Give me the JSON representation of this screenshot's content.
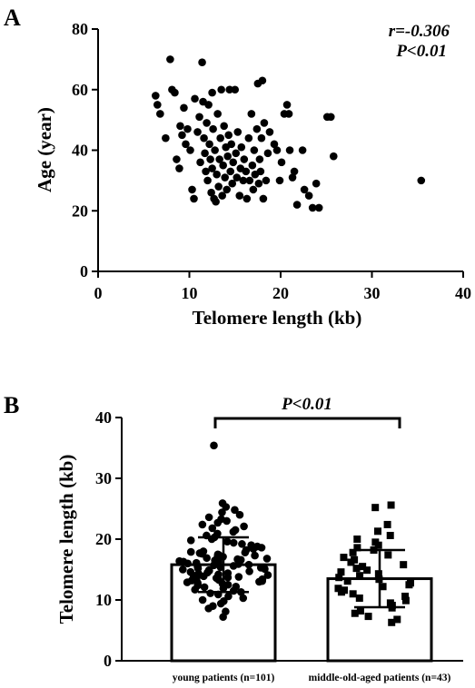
{
  "chart_data": [
    {
      "panel": "A",
      "type": "scatter",
      "xlabel": "Telomere length (kb)",
      "ylabel": "Age (year)",
      "xlim": [
        0,
        40
      ],
      "ylim": [
        0,
        80
      ],
      "xticks": [
        "0",
        "10",
        "20",
        "30",
        "40"
      ],
      "yticks": [
        "0",
        "20",
        "40",
        "60",
        "80"
      ],
      "annotations": [
        "r=-0.306",
        "P<0.01"
      ],
      "grid": false,
      "points": [
        {
          "x": 6.3,
          "y": 58
        },
        {
          "x": 6.5,
          "y": 55
        },
        {
          "x": 6.8,
          "y": 52
        },
        {
          "x": 7.4,
          "y": 44
        },
        {
          "x": 7.9,
          "y": 70
        },
        {
          "x": 8.1,
          "y": 60
        },
        {
          "x": 8.4,
          "y": 59
        },
        {
          "x": 8.6,
          "y": 37
        },
        {
          "x": 8.9,
          "y": 34
        },
        {
          "x": 9.0,
          "y": 48
        },
        {
          "x": 9.2,
          "y": 45
        },
        {
          "x": 9.4,
          "y": 54
        },
        {
          "x": 9.6,
          "y": 42
        },
        {
          "x": 9.8,
          "y": 47
        },
        {
          "x": 10.1,
          "y": 40
        },
        {
          "x": 10.3,
          "y": 27
        },
        {
          "x": 10.5,
          "y": 24
        },
        {
          "x": 10.6,
          "y": 57
        },
        {
          "x": 10.9,
          "y": 46
        },
        {
          "x": 11.1,
          "y": 51
        },
        {
          "x": 11.2,
          "y": 36
        },
        {
          "x": 11.4,
          "y": 69
        },
        {
          "x": 11.5,
          "y": 56
        },
        {
          "x": 11.6,
          "y": 44
        },
        {
          "x": 11.7,
          "y": 39
        },
        {
          "x": 11.8,
          "y": 33
        },
        {
          "x": 11.9,
          "y": 49
        },
        {
          "x": 12.0,
          "y": 30
        },
        {
          "x": 12.1,
          "y": 55
        },
        {
          "x": 12.2,
          "y": 42
        },
        {
          "x": 12.3,
          "y": 37
        },
        {
          "x": 12.4,
          "y": 26
        },
        {
          "x": 12.5,
          "y": 59
        },
        {
          "x": 12.5,
          "y": 34
        },
        {
          "x": 12.6,
          "y": 47
        },
        {
          "x": 12.7,
          "y": 24
        },
        {
          "x": 12.8,
          "y": 40
        },
        {
          "x": 12.9,
          "y": 23
        },
        {
          "x": 13.0,
          "y": 32
        },
        {
          "x": 13.1,
          "y": 52
        },
        {
          "x": 13.2,
          "y": 28
        },
        {
          "x": 13.3,
          "y": 37
        },
        {
          "x": 13.4,
          "y": 44
        },
        {
          "x": 13.5,
          "y": 60
        },
        {
          "x": 13.6,
          "y": 25
        },
        {
          "x": 13.7,
          "y": 35
        },
        {
          "x": 13.8,
          "y": 48
        },
        {
          "x": 13.9,
          "y": 31
        },
        {
          "x": 14.0,
          "y": 41
        },
        {
          "x": 14.1,
          "y": 27
        },
        {
          "x": 14.2,
          "y": 38
        },
        {
          "x": 14.3,
          "y": 45
        },
        {
          "x": 14.4,
          "y": 60
        },
        {
          "x": 14.5,
          "y": 33
        },
        {
          "x": 14.6,
          "y": 42
        },
        {
          "x": 14.7,
          "y": 29
        },
        {
          "x": 14.8,
          "y": 36
        },
        {
          "x": 15.0,
          "y": 60
        },
        {
          "x": 15.1,
          "y": 39
        },
        {
          "x": 15.2,
          "y": 31
        },
        {
          "x": 15.3,
          "y": 46
        },
        {
          "x": 15.5,
          "y": 25
        },
        {
          "x": 15.6,
          "y": 34
        },
        {
          "x": 15.7,
          "y": 41
        },
        {
          "x": 15.9,
          "y": 30
        },
        {
          "x": 16.0,
          "y": 37
        },
        {
          "x": 16.2,
          "y": 33
        },
        {
          "x": 16.3,
          "y": 24
        },
        {
          "x": 16.5,
          "y": 44
        },
        {
          "x": 16.6,
          "y": 30
        },
        {
          "x": 16.8,
          "y": 52
        },
        {
          "x": 16.9,
          "y": 35
        },
        {
          "x": 17.0,
          "y": 27
        },
        {
          "x": 17.1,
          "y": 40
        },
        {
          "x": 17.2,
          "y": 32
        },
        {
          "x": 17.4,
          "y": 47
        },
        {
          "x": 17.5,
          "y": 62
        },
        {
          "x": 17.6,
          "y": 29
        },
        {
          "x": 17.7,
          "y": 37
        },
        {
          "x": 17.8,
          "y": 33
        },
        {
          "x": 17.9,
          "y": 44
        },
        {
          "x": 18.0,
          "y": 63
        },
        {
          "x": 18.1,
          "y": 24
        },
        {
          "x": 18.2,
          "y": 49
        },
        {
          "x": 18.4,
          "y": 30
        },
        {
          "x": 18.6,
          "y": 39
        },
        {
          "x": 18.8,
          "y": 46
        },
        {
          "x": 19.3,
          "y": 42
        },
        {
          "x": 19.6,
          "y": 40
        },
        {
          "x": 19.9,
          "y": 30
        },
        {
          "x": 20.1,
          "y": 36
        },
        {
          "x": 20.4,
          "y": 52
        },
        {
          "x": 20.7,
          "y": 55
        },
        {
          "x": 20.9,
          "y": 52
        },
        {
          "x": 21.0,
          "y": 40
        },
        {
          "x": 21.3,
          "y": 31
        },
        {
          "x": 21.5,
          "y": 33
        },
        {
          "x": 21.8,
          "y": 22
        },
        {
          "x": 22.4,
          "y": 40
        },
        {
          "x": 22.6,
          "y": 27
        },
        {
          "x": 23.1,
          "y": 25
        },
        {
          "x": 23.5,
          "y": 21
        },
        {
          "x": 23.9,
          "y": 29
        },
        {
          "x": 24.2,
          "y": 21
        },
        {
          "x": 25.1,
          "y": 51
        },
        {
          "x": 25.5,
          "y": 51
        },
        {
          "x": 25.8,
          "y": 38
        },
        {
          "x": 35.4,
          "y": 30
        }
      ]
    },
    {
      "panel": "B",
      "type": "bar",
      "ylabel": "Telomere length (kb)",
      "ylim": [
        0,
        40
      ],
      "yticks": [
        "0",
        "10",
        "20",
        "30",
        "40"
      ],
      "categories": [
        "young patients (n=101)",
        "middle-old-aged patients (n=43)"
      ],
      "values": [
        15.8,
        13.5
      ],
      "sd": [
        4.5,
        4.7
      ],
      "annotation": "P<0.01",
      "grid": false,
      "points_group1": [
        7.2,
        8.1,
        8.6,
        9.0,
        9.4,
        9.8,
        10.0,
        10.3,
        10.6,
        10.9,
        11.1,
        11.3,
        11.5,
        11.7,
        11.9,
        12.1,
        12.2,
        12.4,
        12.5,
        12.7,
        12.8,
        12.9,
        13.0,
        13.1,
        13.2,
        13.3,
        13.4,
        13.5,
        13.6,
        13.7,
        13.8,
        13.9,
        14.0,
        14.1,
        14.2,
        14.3,
        14.4,
        14.5,
        14.6,
        14.7,
        14.8,
        14.9,
        15.0,
        15.1,
        15.2,
        15.3,
        15.4,
        15.5,
        15.6,
        15.7,
        15.8,
        15.9,
        16.0,
        16.1,
        16.2,
        16.3,
        16.4,
        16.5,
        16.6,
        16.7,
        16.8,
        16.9,
        17.0,
        17.1,
        17.2,
        17.3,
        17.4,
        17.5,
        17.6,
        17.7,
        17.8,
        17.9,
        18.0,
        18.2,
        18.4,
        18.6,
        18.8,
        19.0,
        19.2,
        19.4,
        19.6,
        19.8,
        20.0,
        20.3,
        20.6,
        20.9,
        21.2,
        21.5,
        21.8,
        22.1,
        22.4,
        22.7,
        23.0,
        23.3,
        23.6,
        24.0,
        24.4,
        24.8,
        25.3,
        25.9,
        35.4
      ],
      "points_group2": [
        6.3,
        6.8,
        7.3,
        7.8,
        8.2,
        8.7,
        9.1,
        9.5,
        9.9,
        10.3,
        10.6,
        11.0,
        11.3,
        11.6,
        11.9,
        12.2,
        12.5,
        12.8,
        13.1,
        13.4,
        13.7,
        14.0,
        14.3,
        14.6,
        14.9,
        15.2,
        15.5,
        15.8,
        16.2,
        16.6,
        17.0,
        17.4,
        17.8,
        18.2,
        18.6,
        19.0,
        19.5,
        20.0,
        20.6,
        21.3,
        22.4,
        25.2,
        25.6
      ]
    }
  ]
}
